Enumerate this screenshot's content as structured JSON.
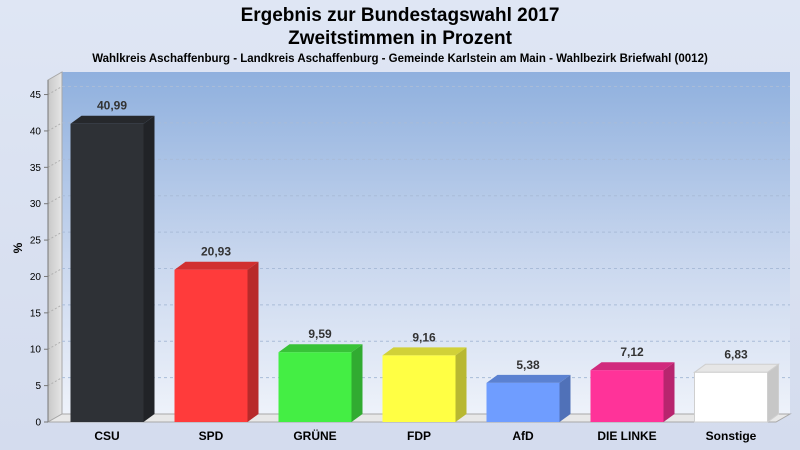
{
  "header": {
    "title_line1": "Ergebnis zur Bundestagswahl 2017",
    "title_line2": "Zweitstimmen in Prozent",
    "subtitle": "Wahlkreis Aschaffenburg - Landkreis Aschaffenburg - Gemeinde Karlstein am Main - Wahlbezirk Briefwahl (0012)"
  },
  "chart_data": {
    "type": "bar",
    "title": "Ergebnis zur Bundestagswahl 2017 Zweitstimmen in Prozent",
    "subtitle": "Wahlkreis Aschaffenburg - Landkreis Aschaffenburg - Gemeinde Karlstein am Main - Wahlbezirk Briefwahl (0012)",
    "xlabel": "",
    "ylabel": "%",
    "ylim": [
      0,
      47
    ],
    "yticks": [
      0,
      5,
      10,
      15,
      20,
      25,
      30,
      35,
      40,
      45
    ],
    "grid": true,
    "categories": [
      "CSU",
      "SPD",
      "GRÜNE",
      "FDP",
      "AfD",
      "DIE LINKE",
      "Sonstige"
    ],
    "values": [
      40.99,
      20.93,
      9.59,
      9.16,
      5.38,
      7.12,
      6.83
    ],
    "value_labels": [
      "40,99",
      "20,93",
      "9,59",
      "9,16",
      "5,38",
      "7,12",
      "6,83"
    ],
    "colors": [
      "#2e3136",
      "#ff3b3b",
      "#44ee44",
      "#ffff44",
      "#6f9dff",
      "#ff3399",
      "#ffffff"
    ]
  }
}
